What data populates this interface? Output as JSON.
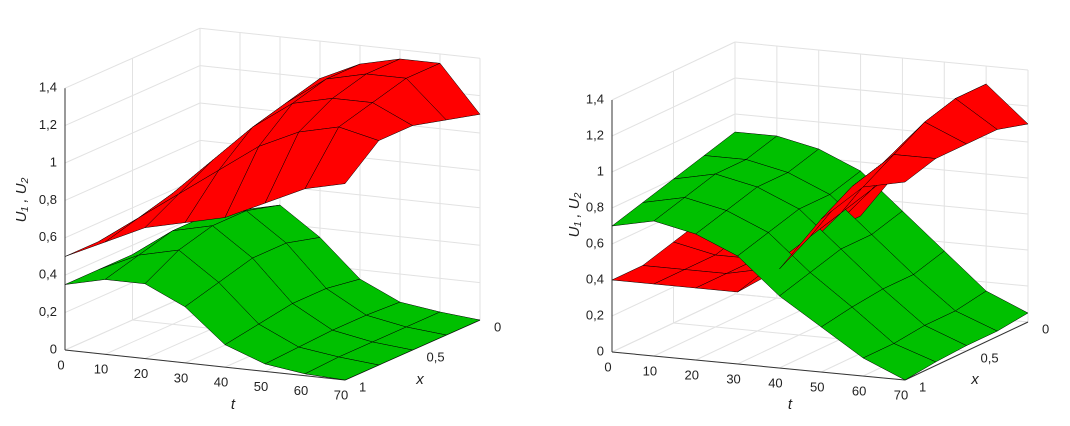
{
  "chart_data": [
    {
      "type": "surface",
      "xlabel": "t",
      "ylabel": "x",
      "zlabel": "U₁ , U₂",
      "t": [
        0,
        10,
        20,
        30,
        40,
        50,
        60,
        70
      ],
      "x": [
        0,
        0.25,
        0.5,
        0.75,
        1
      ],
      "tlim": [
        0,
        70
      ],
      "xlim": [
        0,
        1
      ],
      "zlim": [
        0,
        1.4
      ],
      "tticks": [
        0,
        10,
        20,
        30,
        40,
        50,
        60,
        70
      ],
      "xticks": [
        0,
        {
          "value": 0.5,
          "label": "0,5"
        },
        1
      ],
      "zticks": [
        0,
        {
          "value": 0.2,
          "label": "0,2"
        },
        {
          "value": 0.4,
          "label": "0,4"
        },
        {
          "value": 0.6,
          "label": "0,6"
        },
        {
          "value": 0.8,
          "label": "0,8"
        },
        1,
        {
          "value": 1.2,
          "label": "1,2"
        },
        {
          "value": 1.4,
          "label": "1,4"
        }
      ],
      "grid": true,
      "series": [
        {
          "color": "#ff0000",
          "values": [
            [
              0.6,
              0.8,
              1.0,
              1.2,
              1.3,
              1.35,
              1.35,
              1.1
            ],
            [
              0.55,
              0.75,
              0.95,
              1.15,
              1.3,
              1.35,
              1.35,
              1.15
            ],
            [
              0.5,
              0.7,
              0.9,
              1.1,
              1.25,
              1.3,
              1.3,
              1.2
            ],
            [
              0.5,
              0.65,
              0.8,
              0.95,
              1.1,
              1.2,
              1.25,
              1.2
            ],
            [
              0.5,
              0.6,
              0.7,
              0.75,
              0.8,
              0.9,
              1.0,
              1.05
            ]
          ]
        },
        {
          "color": "#00c000",
          "values": [
            [
              0.35,
              0.45,
              0.5,
              0.35,
              0.15,
              0.05,
              0.02,
              0
            ],
            [
              0.35,
              0.5,
              0.55,
              0.4,
              0.18,
              0.06,
              0.02,
              0
            ],
            [
              0.35,
              0.5,
              0.55,
              0.4,
              0.18,
              0.06,
              0.02,
              0
            ],
            [
              0.35,
              0.45,
              0.5,
              0.35,
              0.15,
              0.05,
              0.02,
              0
            ],
            [
              0.35,
              0.4,
              0.4,
              0.3,
              0.12,
              0.04,
              0.01,
              0
            ]
          ]
        }
      ]
    },
    {
      "type": "surface",
      "xlabel": "t",
      "ylabel": "x",
      "zlabel": "U₁ , U₂",
      "t": [
        0,
        10,
        20,
        30,
        40,
        50,
        60,
        70
      ],
      "x": [
        0,
        0.25,
        0.5,
        0.75,
        1
      ],
      "tlim": [
        0,
        70
      ],
      "xlim": [
        0,
        1
      ],
      "zlim": [
        0,
        1.4
      ],
      "tticks": [
        0,
        10,
        20,
        30,
        40,
        50,
        60,
        70
      ],
      "xticks": [
        0,
        {
          "value": 0.5,
          "label": "0,5"
        },
        1
      ],
      "zticks": [
        0,
        {
          "value": 0.2,
          "label": "0,2"
        },
        {
          "value": 0.4,
          "label": "0,4"
        },
        {
          "value": 0.6,
          "label": "0,6"
        },
        {
          "value": 0.8,
          "label": "0,8"
        },
        1,
        {
          "value": 1.2,
          "label": "1,2"
        },
        {
          "value": 1.4,
          "label": "1,4"
        }
      ],
      "grid": true,
      "series": [
        {
          "color": "#ff0000",
          "values": [
            [
              0.5,
              0.45,
              0.45,
              0.5,
              0.8,
              1.1,
              1.3,
              1.1
            ],
            [
              0.5,
              0.45,
              0.45,
              0.5,
              0.75,
              1.05,
              1.3,
              1.15
            ],
            [
              0.45,
              0.4,
              0.4,
              0.45,
              0.7,
              1.0,
              1.25,
              1.15
            ],
            [
              0.4,
              0.4,
              0.4,
              0.45,
              0.65,
              0.95,
              1.15,
              1.15
            ],
            [
              0.4,
              0.4,
              0.4,
              0.4,
              0.55,
              0.85,
              1.05,
              1.1
            ]
          ]
        },
        {
          "color": "#00c000",
          "values": [
            [
              0.9,
              0.9,
              0.85,
              0.75,
              0.55,
              0.35,
              0.15,
              0.05
            ],
            [
              0.85,
              0.85,
              0.8,
              0.7,
              0.5,
              0.3,
              0.12,
              0.03
            ],
            [
              0.8,
              0.85,
              0.8,
              0.7,
              0.5,
              0.3,
              0.12,
              0.03
            ],
            [
              0.75,
              0.8,
              0.75,
              0.65,
              0.45,
              0.28,
              0.1,
              0.02
            ],
            [
              0.7,
              0.75,
              0.7,
              0.6,
              0.4,
              0.25,
              0.1,
              0
            ]
          ]
        }
      ]
    }
  ]
}
